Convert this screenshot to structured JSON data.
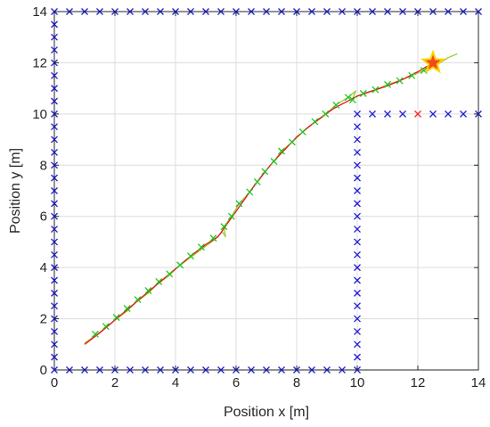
{
  "chart_data": {
    "type": "scatter",
    "title": "",
    "xlabel": "Position x [m]",
    "ylabel": "Position y [m]",
    "xlim": [
      0,
      14
    ],
    "ylim": [
      0,
      14
    ],
    "xticks": [
      0,
      2,
      4,
      6,
      8,
      10,
      12,
      14
    ],
    "yticks": [
      0,
      2,
      4,
      6,
      8,
      10,
      12,
      14
    ],
    "grid": true,
    "series": [
      {
        "kind": "markers",
        "marker": "x",
        "color": "#1f1fd6",
        "points": [
          [
            0,
            0
          ],
          [
            0,
            0.5
          ],
          [
            0,
            1
          ],
          [
            0,
            1.5
          ],
          [
            0,
            2
          ],
          [
            0,
            2.5
          ],
          [
            0,
            3
          ],
          [
            0,
            3.5
          ],
          [
            0,
            4
          ],
          [
            0,
            4.5
          ],
          [
            0,
            5
          ],
          [
            0,
            5.5
          ],
          [
            0,
            6
          ],
          [
            0,
            6.5
          ],
          [
            0,
            7
          ],
          [
            0,
            7.5
          ],
          [
            0,
            8
          ],
          [
            0,
            8.5
          ],
          [
            0,
            9
          ],
          [
            0,
            9.5
          ],
          [
            0,
            10
          ],
          [
            0,
            10.5
          ],
          [
            0,
            11
          ],
          [
            0,
            11.5
          ],
          [
            0,
            12
          ],
          [
            0,
            12.5
          ],
          [
            0,
            13
          ],
          [
            0,
            13.5
          ],
          [
            0,
            14
          ],
          [
            0.5,
            14
          ],
          [
            1,
            14
          ],
          [
            1.5,
            14
          ],
          [
            2,
            14
          ],
          [
            2.5,
            14
          ],
          [
            3,
            14
          ],
          [
            3.5,
            14
          ],
          [
            4,
            14
          ],
          [
            4.5,
            14
          ],
          [
            5,
            14
          ],
          [
            5.5,
            14
          ],
          [
            6,
            14
          ],
          [
            6.5,
            14
          ],
          [
            7,
            14
          ],
          [
            7.5,
            14
          ],
          [
            8,
            14
          ],
          [
            8.5,
            14
          ],
          [
            9,
            14
          ],
          [
            9.5,
            14
          ],
          [
            10,
            14
          ],
          [
            10.5,
            14
          ],
          [
            11,
            14
          ],
          [
            11.5,
            14
          ],
          [
            12,
            14
          ],
          [
            12.5,
            14
          ],
          [
            13,
            14
          ],
          [
            13.5,
            14
          ],
          [
            14,
            14
          ],
          [
            0.5,
            0
          ],
          [
            1,
            0
          ],
          [
            1.5,
            0
          ],
          [
            2,
            0
          ],
          [
            2.5,
            0
          ],
          [
            3,
            0
          ],
          [
            3.5,
            0
          ],
          [
            4,
            0
          ],
          [
            4.5,
            0
          ],
          [
            5,
            0
          ],
          [
            5.5,
            0
          ],
          [
            6,
            0
          ],
          [
            6.5,
            0
          ],
          [
            7,
            0
          ],
          [
            7.5,
            0
          ],
          [
            8,
            0
          ],
          [
            8.5,
            0
          ],
          [
            9,
            0
          ],
          [
            9.5,
            0
          ],
          [
            10,
            0
          ],
          [
            10,
            0.5
          ],
          [
            10,
            1
          ],
          [
            10,
            1.5
          ],
          [
            10,
            2
          ],
          [
            10,
            2.5
          ],
          [
            10,
            3
          ],
          [
            10,
            3.5
          ],
          [
            10,
            4
          ],
          [
            10,
            4.5
          ],
          [
            10,
            5
          ],
          [
            10,
            5.5
          ],
          [
            10,
            6
          ],
          [
            10,
            6.5
          ],
          [
            10,
            7
          ],
          [
            10,
            7.5
          ],
          [
            10,
            8
          ],
          [
            10,
            8.5
          ],
          [
            10,
            9
          ],
          [
            10,
            9.5
          ],
          [
            10,
            10
          ],
          [
            10.5,
            10
          ],
          [
            11,
            10
          ],
          [
            11.5,
            10
          ],
          [
            12.5,
            10
          ],
          [
            13,
            10
          ],
          [
            13.5,
            10
          ],
          [
            14,
            10
          ]
        ]
      },
      {
        "kind": "markers",
        "marker": "x",
        "color": "#ff2020",
        "points": [
          [
            12,
            10
          ]
        ]
      },
      {
        "kind": "line",
        "color": "#9acd32",
        "points": [
          [
            1.0,
            1.05
          ],
          [
            1.3,
            1.3
          ],
          [
            1.7,
            1.65
          ],
          [
            2.0,
            1.95
          ],
          [
            2.4,
            2.3
          ],
          [
            2.7,
            2.65
          ],
          [
            3.1,
            3.0
          ],
          [
            3.4,
            3.35
          ],
          [
            3.8,
            3.7
          ],
          [
            4.1,
            4.05
          ],
          [
            4.5,
            4.4
          ],
          [
            4.9,
            4.75
          ],
          [
            5.3,
            5.1
          ],
          [
            5.55,
            5.4
          ],
          [
            5.65,
            5.2
          ],
          [
            5.6,
            5.6
          ],
          [
            5.85,
            6.0
          ],
          [
            6.1,
            6.5
          ],
          [
            6.45,
            6.95
          ],
          [
            6.7,
            7.35
          ],
          [
            6.95,
            7.75
          ],
          [
            7.25,
            8.15
          ],
          [
            7.5,
            8.55
          ],
          [
            7.85,
            8.9
          ],
          [
            8.2,
            9.3
          ],
          [
            8.6,
            9.7
          ],
          [
            8.95,
            10.0
          ],
          [
            9.3,
            10.35
          ],
          [
            9.7,
            10.65
          ],
          [
            9.95,
            10.9
          ],
          [
            9.85,
            10.6
          ],
          [
            10.2,
            10.8
          ],
          [
            10.6,
            10.95
          ],
          [
            11.0,
            11.15
          ],
          [
            11.4,
            11.3
          ],
          [
            11.8,
            11.5
          ],
          [
            12.2,
            11.7
          ],
          [
            12.6,
            11.9
          ],
          [
            13.0,
            12.2
          ],
          [
            13.3,
            12.35
          ]
        ]
      },
      {
        "kind": "line",
        "color": "#e8101c",
        "points": [
          [
            1.0,
            1.0
          ],
          [
            1.5,
            1.45
          ],
          [
            2.0,
            1.95
          ],
          [
            2.5,
            2.45
          ],
          [
            3.0,
            2.95
          ],
          [
            3.5,
            3.45
          ],
          [
            4.0,
            3.95
          ],
          [
            4.5,
            4.45
          ],
          [
            5.0,
            4.9
          ],
          [
            5.4,
            5.2
          ],
          [
            5.7,
            5.7
          ],
          [
            6.0,
            6.2
          ],
          [
            6.3,
            6.7
          ],
          [
            6.6,
            7.2
          ],
          [
            6.9,
            7.65
          ],
          [
            7.2,
            8.1
          ],
          [
            7.6,
            8.6
          ],
          [
            8.0,
            9.1
          ],
          [
            8.4,
            9.5
          ],
          [
            8.8,
            9.85
          ],
          [
            9.2,
            10.2
          ],
          [
            9.6,
            10.45
          ],
          [
            10.0,
            10.7
          ],
          [
            10.5,
            10.9
          ],
          [
            11.0,
            11.1
          ],
          [
            11.5,
            11.35
          ],
          [
            12.0,
            11.65
          ],
          [
            12.5,
            12.0
          ]
        ]
      },
      {
        "kind": "markers",
        "marker": "x",
        "color": "#22c422",
        "points": [
          [
            1.35,
            1.4
          ],
          [
            1.7,
            1.7
          ],
          [
            2.05,
            2.05
          ],
          [
            2.4,
            2.4
          ],
          [
            2.75,
            2.75
          ],
          [
            3.1,
            3.1
          ],
          [
            3.45,
            3.45
          ],
          [
            3.8,
            3.75
          ],
          [
            4.15,
            4.1
          ],
          [
            4.5,
            4.45
          ],
          [
            4.85,
            4.8
          ],
          [
            5.25,
            5.15
          ],
          [
            5.6,
            5.6
          ],
          [
            5.85,
            6.0
          ],
          [
            6.1,
            6.5
          ],
          [
            6.45,
            6.95
          ],
          [
            6.7,
            7.35
          ],
          [
            6.95,
            7.75
          ],
          [
            7.25,
            8.15
          ],
          [
            7.5,
            8.55
          ],
          [
            7.85,
            8.9
          ],
          [
            8.2,
            9.3
          ],
          [
            8.6,
            9.7
          ],
          [
            8.95,
            10.0
          ],
          [
            9.3,
            10.35
          ],
          [
            9.7,
            10.65
          ],
          [
            9.85,
            10.55
          ],
          [
            10.2,
            10.8
          ],
          [
            10.6,
            10.95
          ],
          [
            11.0,
            11.15
          ],
          [
            11.4,
            11.3
          ],
          [
            11.8,
            11.5
          ],
          [
            12.2,
            11.7
          ]
        ]
      }
    ],
    "goal_marker": {
      "shape": "star",
      "x": 12.5,
      "y": 12.0,
      "fill": "#f04a1a",
      "outline": "#ffd200"
    },
    "colors": {
      "axis": "#262626",
      "grid": "#dcdcdc",
      "background": "#ffffff"
    }
  }
}
